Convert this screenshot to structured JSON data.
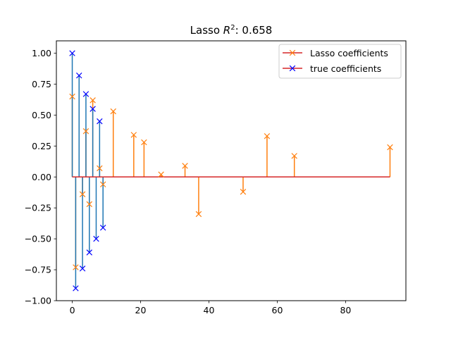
{
  "chart_data": {
    "type": "stem",
    "title": "Lasso R²: 0.658",
    "title_parts": {
      "prefix": "Lasso ",
      "italic": "R",
      "sup": "2",
      "suffix": ": 0.658"
    },
    "xlabel": "",
    "ylabel": "",
    "xlim": [
      -4.65,
      97.65
    ],
    "ylim": [
      -1.0,
      1.1
    ],
    "x_ticks": [
      0,
      20,
      40,
      60,
      80
    ],
    "y_ticks": [
      -1.0,
      -0.75,
      -0.5,
      -0.25,
      0.0,
      0.25,
      0.5,
      0.75,
      1.0
    ],
    "y_tick_labels": [
      "−1.00",
      "−0.75",
      "−0.50",
      "−0.25",
      "0.00",
      "0.25",
      "0.50",
      "0.75",
      "1.00"
    ],
    "grid": false,
    "legend_position": "top-right",
    "baseline": {
      "y": 0,
      "x_range": [
        0,
        93
      ],
      "color": "#d62728"
    },
    "series": [
      {
        "name": "Lasso coefficients",
        "marker": "x",
        "stem_color": "#ff7f0e",
        "marker_color": "#ff7f0e",
        "points": [
          {
            "x": 0,
            "y": 0.65
          },
          {
            "x": 1,
            "y": -0.73
          },
          {
            "x": 3,
            "y": -0.14
          },
          {
            "x": 4,
            "y": 0.37
          },
          {
            "x": 5,
            "y": -0.22
          },
          {
            "x": 6,
            "y": 0.62
          },
          {
            "x": 8,
            "y": 0.07
          },
          {
            "x": 9,
            "y": -0.06
          },
          {
            "x": 12,
            "y": 0.53
          },
          {
            "x": 18,
            "y": 0.34
          },
          {
            "x": 21,
            "y": 0.28
          },
          {
            "x": 26,
            "y": 0.02
          },
          {
            "x": 33,
            "y": 0.09
          },
          {
            "x": 37,
            "y": -0.3
          },
          {
            "x": 50,
            "y": -0.12
          },
          {
            "x": 57,
            "y": 0.33
          },
          {
            "x": 65,
            "y": 0.17
          },
          {
            "x": 93,
            "y": 0.24
          }
        ]
      },
      {
        "name": "true coefficients",
        "marker": "x",
        "stem_color": "#1f77b4",
        "marker_color": "#0000ff",
        "points": [
          {
            "x": 0,
            "y": 1.0
          },
          {
            "x": 1,
            "y": -0.9
          },
          {
            "x": 2,
            "y": 0.82
          },
          {
            "x": 3,
            "y": -0.74
          },
          {
            "x": 4,
            "y": 0.67
          },
          {
            "x": 5,
            "y": -0.61
          },
          {
            "x": 6,
            "y": 0.55
          },
          {
            "x": 7,
            "y": -0.5
          },
          {
            "x": 8,
            "y": 0.45
          },
          {
            "x": 9,
            "y": -0.41
          }
        ]
      }
    ]
  }
}
